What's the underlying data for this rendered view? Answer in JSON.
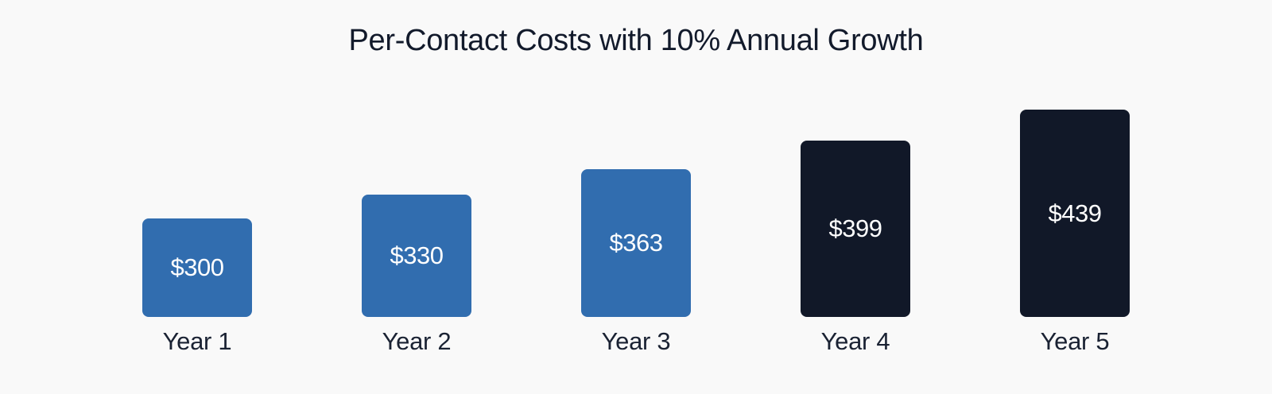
{
  "title": "Per-Contact Costs with 10% Annual Growth",
  "colors": {
    "highlight_blue": "#316daf",
    "dark_navy": "#111828",
    "background": "#f9f9f9",
    "text": "#121a2b"
  },
  "bars": [
    {
      "label": "Year 1",
      "value_label": "$300",
      "value": 300,
      "color": "#316daf"
    },
    {
      "label": "Year 2",
      "value_label": "$330",
      "value": 330,
      "color": "#316daf"
    },
    {
      "label": "Year 3",
      "value_label": "$363",
      "value": 363,
      "color": "#316daf"
    },
    {
      "label": "Year 4",
      "value_label": "$399",
      "value": 399,
      "color": "#111828"
    },
    {
      "label": "Year 5",
      "value_label": "$439",
      "value": 439,
      "color": "#111828"
    }
  ],
  "chart_data": {
    "type": "bar",
    "title": "Per-Contact Costs with 10% Annual Growth",
    "categories": [
      "Year 1",
      "Year 2",
      "Year 3",
      "Year 4",
      "Year 5"
    ],
    "values": [
      300,
      330,
      363,
      399,
      439
    ],
    "data_labels": [
      "$300",
      "$330",
      "$363",
      "$399",
      "$439"
    ],
    "bar_colors": [
      "#316daf",
      "#316daf",
      "#316daf",
      "#111828",
      "#111828"
    ],
    "xlabel": "",
    "ylabel": "",
    "grid": false,
    "legend": "none",
    "axes_visible": false
  }
}
